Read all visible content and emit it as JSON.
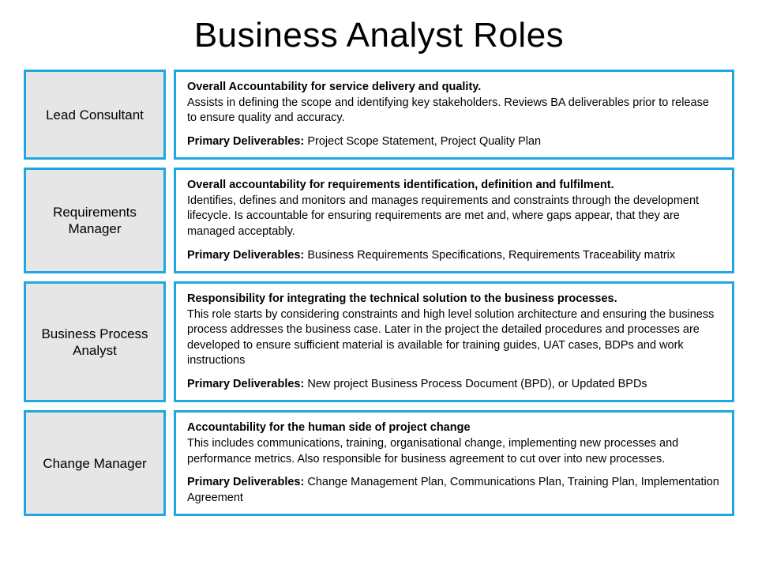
{
  "title": "Business Analyst Roles",
  "border_color": "#1fa7e0",
  "role_bg": "#e6e6e6",
  "desc_bg": "#ffffff",
  "roles": [
    {
      "name": "Lead Consultant",
      "headline": "Overall Accountability for service delivery and quality.",
      "body": "Assists in defining the scope and identifying key stakeholders.  Reviews BA deliverables prior to release to ensure quality and accuracy.",
      "deliv_label": "Primary Deliverables:",
      "deliv": " Project Scope Statement, Project Quality Plan"
    },
    {
      "name": "Requirements Manager",
      "headline": "Overall accountability for requirements identification, definition and fulfilment.",
      "body": "Identifies, defines and monitors and manages requirements and constraints through the development lifecycle.  Is accountable for ensuring requirements are met and, where gaps appear, that they are managed acceptably.",
      "deliv_label": "Primary Deliverables:",
      "deliv": " Business Requirements Specifications, Requirements Traceability matrix"
    },
    {
      "name": "Business Process Analyst",
      "headline": "Responsibility for integrating the technical solution to the business processes.",
      "body": "This role starts by considering constraints and high level solution architecture and ensuring the business process addresses the business case.  Later in the project the detailed procedures and processes are developed to ensure sufficient material is available for training guides, UAT cases, BDPs and work instructions",
      "deliv_label": "Primary Deliverables:",
      "deliv": " New project Business Process Document (BPD), or Updated BPDs"
    },
    {
      "name": "Change Manager",
      "headline": "Accountability for the human side of project change",
      "body": "This includes communications, training, organisational change, implementing new processes and performance metrics.  Also responsible for business agreement to cut over into new processes.",
      "deliv_label": "Primary Deliverables:",
      "deliv": " Change Management Plan, Communications Plan, Training Plan, Implementation Agreement"
    }
  ]
}
